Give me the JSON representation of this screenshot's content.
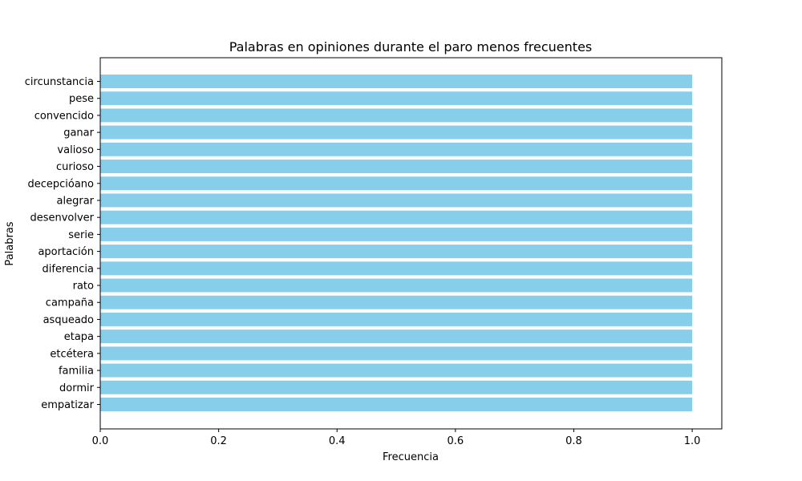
{
  "chart_data": {
    "type": "bar",
    "orientation": "horizontal",
    "title": "Palabras en opiniones durante el paro menos frecuentes",
    "xlabel": "Frecuencia",
    "ylabel": "Palabras",
    "categories": [
      "circunstancia",
      "pese",
      "convencido",
      "ganar",
      "valioso",
      "curioso",
      "decepcióano",
      "alegrar",
      "desenvolver",
      "serie",
      "aportación",
      "diferencia",
      "rato",
      "campaña",
      "asqueado",
      "etapa",
      "etcétera",
      "familia",
      "dormir",
      "empatizar"
    ],
    "values": [
      1,
      1,
      1,
      1,
      1,
      1,
      1,
      1,
      1,
      1,
      1,
      1,
      1,
      1,
      1,
      1,
      1,
      1,
      1,
      1
    ],
    "xlim": [
      0,
      1.05
    ],
    "xticks": [
      "0.0",
      "0.2",
      "0.4",
      "0.6",
      "0.8",
      "1.0"
    ],
    "bar_color": "#87ceeb",
    "grid": false,
    "legend": false
  }
}
